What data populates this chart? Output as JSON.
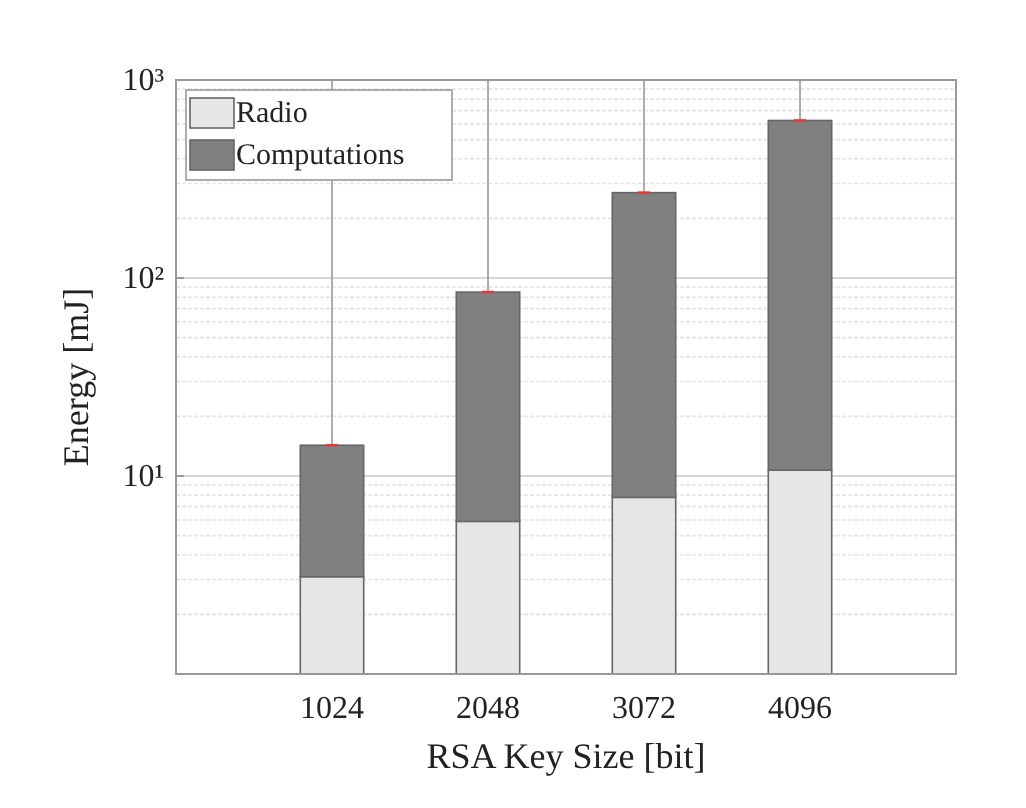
{
  "chart_data": {
    "type": "bar",
    "stacked": true,
    "log": "y",
    "xlabel": "RSA Key Size [bit]",
    "ylabel": "Energy [mJ]",
    "categories": [
      "1024",
      "2048",
      "3072",
      "4096"
    ],
    "series": [
      {
        "name": "Radio",
        "color": "#e6e6e6",
        "values": [
          3.1,
          5.9,
          7.8,
          10.7
        ]
      },
      {
        "name": "Computations",
        "color": "#808080",
        "values": [
          11.2,
          79,
          262,
          614
        ],
        "errors": [
          [
            14.3,
            1000
          ],
          [
            85,
            1000
          ],
          [
            270,
            1000
          ],
          [
            625,
            1000
          ]
        ]
      }
    ],
    "ylim": [
      1,
      1000
    ],
    "yticks": [
      {
        "value": 1,
        "label": null
      },
      {
        "value": 10,
        "label": "10¹"
      },
      {
        "value": 100,
        "label": "10²"
      },
      {
        "value": 1000,
        "label": "10³"
      }
    ],
    "grid": "y",
    "legend": "top left"
  }
}
